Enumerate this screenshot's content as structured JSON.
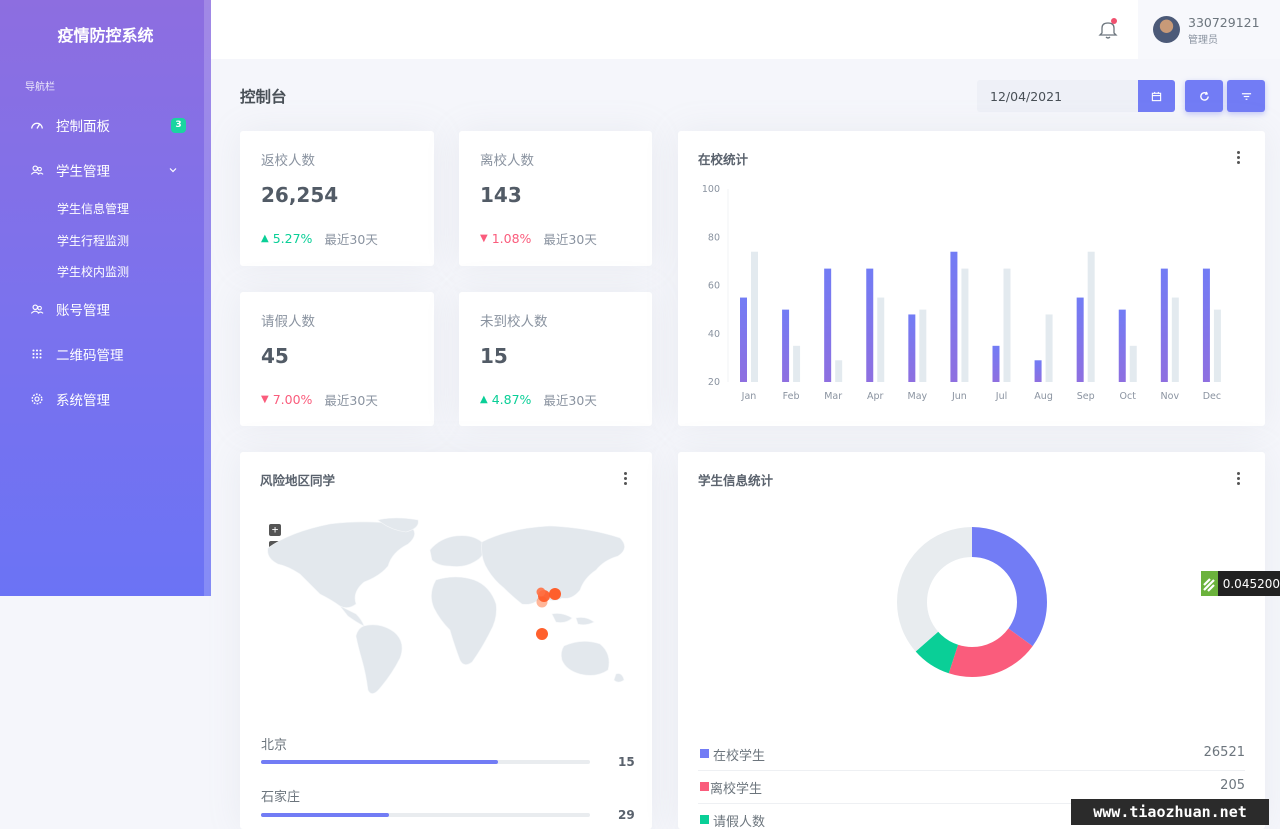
{
  "app": {
    "title": "疫情防控系统"
  },
  "sidebar": {
    "caption": "导航栏",
    "items": [
      {
        "label": "控制面板",
        "icon": "dashboard-icon",
        "badge": "3"
      },
      {
        "label": "学生管理",
        "icon": "users-icon",
        "expanded": true,
        "children": [
          {
            "label": "学生信息管理"
          },
          {
            "label": "学生行程监测"
          },
          {
            "label": "学生校内监测"
          }
        ]
      },
      {
        "label": "账号管理",
        "icon": "users-icon"
      },
      {
        "label": "二维码管理",
        "icon": "grid-icon"
      },
      {
        "label": "系统管理",
        "icon": "gear-icon"
      }
    ]
  },
  "topbar": {
    "user": {
      "name": "330729121",
      "role": "管理员"
    }
  },
  "page": {
    "title": "控制台",
    "date_value": "12/04/2021"
  },
  "stats": [
    {
      "label": "返校人数",
      "value": "26,254",
      "change": "5.27%",
      "direction": "up",
      "period": "最近30天"
    },
    {
      "label": "离校人数",
      "value": "143",
      "change": "1.08%",
      "direction": "down",
      "period": "最近30天"
    },
    {
      "label": "请假人数",
      "value": "45",
      "change": "7.00%",
      "direction": "down",
      "period": "最近30天"
    },
    {
      "label": "未到校人数",
      "value": "15",
      "change": "4.87%",
      "direction": "up",
      "period": "最近30天"
    }
  ],
  "bar_card": {
    "title": "在校统计"
  },
  "chart_data": {
    "type": "bar",
    "categories": [
      "Jan",
      "Feb",
      "Mar",
      "Apr",
      "May",
      "Jun",
      "Jul",
      "Aug",
      "Sep",
      "Oct",
      "Nov",
      "Dec"
    ],
    "series": [
      {
        "values": [
          55,
          50,
          67,
          67,
          48,
          74,
          35,
          29,
          55,
          50,
          67,
          67
        ],
        "color": "#727cf5"
      },
      {
        "values": [
          74,
          35,
          29,
          55,
          50,
          67,
          67,
          48,
          74,
          35,
          55,
          50
        ],
        "color": "#e3eaef"
      }
    ],
    "ylim": [
      20,
      100
    ],
    "yticks": [
      "100",
      "80",
      "60",
      "40",
      "20"
    ],
    "grid": false
  },
  "risk_card": {
    "title": "风险地区同学",
    "zoom_in": "+",
    "zoom_out": "−",
    "regions": [
      {
        "name": "北京",
        "count": "15",
        "progress": 0.72
      },
      {
        "name": "石家庄",
        "count": "29",
        "progress": 0.39
      }
    ]
  },
  "donut_card": {
    "title": "学生信息统计",
    "segments": [
      {
        "name": "在校学生",
        "value": "26521",
        "color": "#727cf5",
        "share": 0.35
      },
      {
        "name": "离校学生",
        "value": "205",
        "color": "#fa5c7c",
        "share": 0.2
      },
      {
        "name": "请假人数",
        "value": "",
        "color": "#0acf97",
        "share": 0.085
      },
      {
        "name": "",
        "value": "",
        "color": "#e8ecef",
        "share": 0.365
      }
    ]
  },
  "ticker": {
    "text": "0.045200"
  },
  "watermark": {
    "text": "www.tiaozhuan.net"
  },
  "colors": {
    "primary": "#727cf5",
    "success": "#0acf97",
    "danger": "#fa5c7c"
  }
}
